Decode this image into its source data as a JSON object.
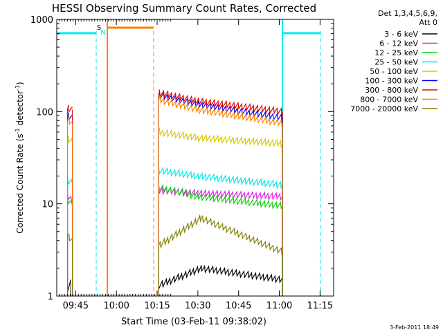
{
  "chart_data": {
    "type": "line",
    "title": "HESSI Observing Summary Count Rates, Corrected",
    "xlabel": "Start Time (03-Feb-11 09:38:02)",
    "ylabel_main": "Corrected Count Rate (s",
    "ylabel_sup1": "-1",
    "ylabel_mid": " detector",
    "ylabel_sup2": "-1",
    "ylabel_end": ")",
    "yscale": "log",
    "ylim": [
      1,
      1000
    ],
    "xlim": [
      "09:38:02",
      "11:20:00"
    ],
    "xticks": [
      "09:45",
      "10:00",
      "10:15",
      "10:30",
      "10:45",
      "11:00",
      "11:15"
    ],
    "yticks": [
      "1",
      "10",
      "100",
      "1000"
    ],
    "legend_placement": "outside-right",
    "legend_header": [
      "Det 1,3,4,5,6,9,",
      "Att 0"
    ],
    "series": [
      {
        "name": "3 - 6 keV",
        "color": "#000000",
        "segments": [
          [
            [
              9.7,
              1.2
            ],
            [
              9.72,
              1.4
            ]
          ],
          [
            [
              10.26,
              1.3
            ],
            [
              10.52,
              2.0
            ],
            [
              11.02,
              1.5
            ]
          ]
        ]
      },
      {
        "name": "6 - 12 keV",
        "color": "#e020e0",
        "segments": [
          [
            [
              9.7,
              12
            ],
            [
              9.73,
              11
            ]
          ],
          [
            [
              10.26,
              14
            ],
            [
              10.5,
              13
            ],
            [
              11.02,
              12
            ]
          ]
        ]
      },
      {
        "name": "12 - 25 keV",
        "color": "#10d010",
        "segments": [
          [
            [
              9.7,
              11
            ],
            [
              9.73,
              10
            ]
          ],
          [
            [
              10.26,
              15
            ],
            [
              10.5,
              12
            ],
            [
              11.02,
              9.5
            ]
          ]
        ]
      },
      {
        "name": "25 - 50 keV",
        "color": "#00e8e8",
        "segments": [
          [
            [
              9.7,
              18
            ],
            [
              9.73,
              17
            ]
          ],
          [
            [
              10.26,
              23
            ],
            [
              10.5,
              20
            ],
            [
              11.02,
              16
            ]
          ]
        ]
      },
      {
        "name": "50 - 100 keV",
        "color": "#d8c800",
        "segments": [
          [
            [
              9.7,
              50
            ],
            [
              9.73,
              48
            ]
          ],
          [
            [
              10.26,
              60
            ],
            [
              10.5,
              52
            ],
            [
              11.02,
              45
            ]
          ]
        ]
      },
      {
        "name": "100 - 300 keV",
        "color": "#0000ff",
        "segments": [
          [
            [
              9.7,
              90
            ],
            [
              9.73,
              85
            ]
          ],
          [
            [
              10.26,
              150
            ],
            [
              10.5,
              120
            ],
            [
              11.02,
              85
            ]
          ]
        ]
      },
      {
        "name": "300 - 800 keV",
        "color": "#e00000",
        "segments": [
          [
            [
              9.7,
              110
            ],
            [
              9.73,
              105
            ]
          ],
          [
            [
              10.26,
              160
            ],
            [
              10.5,
              130
            ],
            [
              11.02,
              100
            ]
          ]
        ]
      },
      {
        "name": "800 - 7000 keV",
        "color": "#ff8000",
        "segments": [
          [
            [
              9.7,
              80
            ],
            [
              9.73,
              75
            ]
          ],
          [
            [
              10.26,
              135
            ],
            [
              10.5,
              105
            ],
            [
              11.02,
              75
            ]
          ]
        ]
      },
      {
        "name": "7000 - 20000 keV",
        "color": "#808000",
        "segments": [
          [
            [
              9.7,
              4.5
            ],
            [
              9.73,
              4.0
            ]
          ],
          [
            [
              10.26,
              3.5
            ],
            [
              10.52,
              7.0
            ],
            [
              11.02,
              3.0
            ]
          ]
        ]
      }
    ],
    "annotations": {
      "s_marker": "S",
      "n_marker": "N"
    }
  },
  "footer_timestamp": "3-Feb-2011 18:49"
}
